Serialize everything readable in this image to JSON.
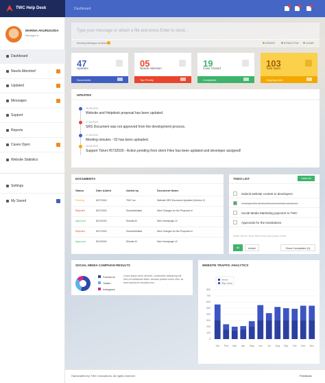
{
  "header": {
    "app_title": "TWC Help Desk",
    "breadcrumb": "Dashboard"
  },
  "profile": {
    "name": "MARINA AKURUGODA",
    "role": "Manager ▾"
  },
  "menu": [
    {
      "label": "Dashboard",
      "active": true
    },
    {
      "label": "Needs Attention!",
      "badge": true
    },
    {
      "label": "Updated",
      "badge": true
    },
    {
      "label": "Messages",
      "badge": true
    },
    {
      "label": "Support"
    },
    {
      "label": "Reports"
    },
    {
      "label": "Cases Open",
      "badge": true
    },
    {
      "label": "Website Statistics"
    }
  ],
  "menu_bottom": [
    {
      "label": "Settings"
    },
    {
      "label": "My Saved",
      "badge": true
    }
  ],
  "composer": {
    "placeholder": "Type your message or attach a file and press Enter to send...",
    "sending_as": "Sending Messages as Marina",
    "actions": [
      "UPDATE",
      "ATTACH FILE",
      "CLEAR"
    ]
  },
  "stats": [
    {
      "value": "47",
      "label": "Updates",
      "footer": "Documents",
      "color": "#3f5fc0"
    },
    {
      "value": "05",
      "label": "Needs Attention",
      "footer": "Top Priority",
      "color": "#e8452c"
    },
    {
      "value": "19",
      "label": "Case Closed",
      "footer": "Completed",
      "color": "#3db36b"
    },
    {
      "value": "103",
      "label": "Task Open",
      "footer": "Ongoing Alert",
      "color": "#f5a700"
    }
  ],
  "updates": {
    "title": "UPDATES",
    "items": [
      {
        "date": "28-08-2015",
        "text": "Website and Helpdesk proposal has been updated.",
        "color": "#3f5fc0"
      },
      {
        "date": "27-08-2015",
        "text": "SRS Document was not approved from the development process.",
        "color": "#e8452c"
      },
      {
        "date": "27-08-2015",
        "text": "Meeting minutes - 02 has been uploaded.",
        "color": "#3f5fc0"
      },
      {
        "date": "26-08-2015",
        "text": "Support Ticket #5732530 - Action pending from client Files has been updated and developer assigned!",
        "color": "#f5a700"
      }
    ]
  },
  "documents": {
    "title": "DOCUMENTS",
    "columns": [
      "Status",
      "Date Added",
      "Added by",
      "Document Name"
    ],
    "rows": [
      [
        "Pending",
        "8/27/2015",
        "TWC Inc.",
        "Website SRS Document Updated (Version 2)"
      ],
      [
        "Rejected",
        "8/27/2015",
        "Somanethilaka",
        "New Changes for the Proposal of"
      ],
      [
        "Approved",
        "8/13/2015",
        "Shivaku B",
        "New Homepage UI"
      ],
      [
        "Rejected",
        "8/27/2015",
        "Somanethilaka",
        "New Changes for the Proposal of"
      ],
      [
        "Approved",
        "8/13/2015",
        "Shivaku B",
        "New Homepage UI"
      ]
    ],
    "status_colors": {
      "Pending": "#f5a700",
      "Rejected": "#e8452c",
      "Approved": "#3db36b"
    }
  },
  "todo": {
    "title": "TODO LIST",
    "select_all": "Select All",
    "items": [
      {
        "text": "Submit website content to developers",
        "done": false
      },
      {
        "text": "Arrange the photoshoot and take pictures",
        "done": true
      },
      {
        "text": "Social Media Marketing payment to TWC",
        "done": false
      },
      {
        "text": "Approvals for the translations",
        "done": false
      }
    ],
    "placeholder": "Write Some Todo item here and press Enter",
    "filters": [
      "All",
      "Active"
    ],
    "clear": "Clear Completed (1)"
  },
  "social": {
    "title": "SOCIAL MEDIA CAMPAIGN RESULTS",
    "chart": {
      "type": "pie",
      "categories": [
        "Facebook",
        "Twitter",
        "Instagram"
      ],
      "values": [
        55,
        30,
        15
      ],
      "colors": [
        "#2c4aa8",
        "#5ab4e8",
        "#d6278a"
      ]
    },
    "text": "Lorem ipsum dolor sit amet, consectetur adipiscing elit. Sed vel sollicitudin tellus. Aenean pretium lorem nibh, sit amet lacinia leo tincidunt nec."
  },
  "traffic": {
    "title": "WEBSITE TRAFFIC ANALYTICS",
    "chart": {
      "type": "bar",
      "stacked": true,
      "categories": [
        "Jan",
        "Feb",
        "Mar",
        "Apr",
        "May",
        "Jun",
        "Jul",
        "Aug",
        "Sep",
        "Oct",
        "Nov",
        "Dec"
      ],
      "series": [
        {
          "name": "Visitors",
          "color": "#2b3f9e",
          "values": [
            300,
            150,
            140,
            150,
            200,
            300,
            300,
            300,
            300,
            300,
            300,
            300
          ]
        },
        {
          "name": "Page Views",
          "color": "#3d55c2",
          "values": [
            260,
            90,
            60,
            60,
            90,
            250,
            120,
            220,
            200,
            190,
            240,
            240
          ]
        }
      ],
      "ylim": [
        0,
        800
      ],
      "yticks": [
        0,
        100,
        200,
        300,
        400,
        500,
        600,
        700,
        800
      ],
      "grid": true
    }
  },
  "footer": {
    "credit": "Handcrafted by TWC Innovations. All rights reserved",
    "feedback": "Feedback"
  }
}
